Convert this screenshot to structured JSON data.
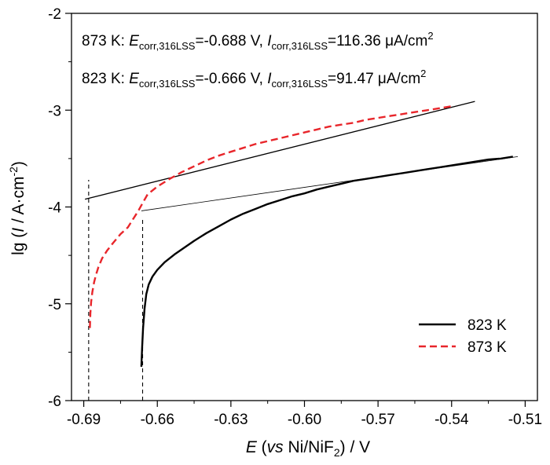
{
  "chart_data": {
    "type": "line",
    "xlim": [
      -0.695,
      -0.505
    ],
    "ylim": [
      -6,
      -2
    ],
    "x_ticks": [
      "-0.69",
      "-0.66",
      "-0.63",
      "-0.60",
      "-0.57",
      "-0.54",
      "-0.51"
    ],
    "y_ticks": [
      "-2",
      "-3",
      "-4",
      "-5",
      "-6"
    ],
    "xlabel": {
      "E": "E",
      "open": " (",
      "vs": "vs",
      "ref": " Ni/NiF",
      "sub": "2",
      "close": ") / V"
    },
    "ylabel": {
      "pre": "lg (",
      "I": "I",
      "mid": " / A·cm",
      "sup": "-2",
      "post": ")"
    },
    "annotations": [
      {
        "temp": "873 K: ",
        "e_sym": "E",
        "e_sub": "corr,316LSS",
        "e_val": "=-0.688 V, ",
        "i_sym": "I",
        "i_sub": "corr,316LSS",
        "i_val": "=116.36 μA/cm",
        "i_sup": "2"
      },
      {
        "temp": "823 K: ",
        "e_sym": "E",
        "e_sub": "corr,316LSS",
        "e_val": "=-0.666 V, ",
        "i_sym": "I",
        "i_sub": "corr,316LSS",
        "i_val": "=91.47 μA/cm",
        "i_sup": "2"
      }
    ],
    "legend": {
      "placement": "bottom-right",
      "entries": [
        {
          "label": "823 K",
          "color": "#000000",
          "dash": "solid"
        },
        {
          "label": "873 K",
          "color": "#e8262b",
          "dash": "dashed"
        }
      ]
    },
    "series": [
      {
        "name": "823 K",
        "color": "#000000",
        "style": "solid",
        "x": [
          -0.6665,
          -0.6662,
          -0.6658,
          -0.6652,
          -0.6645,
          -0.6635,
          -0.662,
          -0.66,
          -0.657,
          -0.653,
          -0.649,
          -0.645,
          -0.64,
          -0.635,
          -0.63,
          -0.625,
          -0.62,
          -0.615,
          -0.61,
          -0.605,
          -0.6,
          -0.595,
          -0.59,
          -0.585,
          -0.58,
          -0.575,
          -0.57,
          -0.565,
          -0.56,
          -0.555,
          -0.55,
          -0.545,
          -0.54,
          -0.535,
          -0.53,
          -0.525,
          -0.52,
          -0.515
        ],
        "y": [
          -5.65,
          -5.45,
          -5.25,
          -5.05,
          -4.9,
          -4.8,
          -4.72,
          -4.65,
          -4.57,
          -4.49,
          -4.42,
          -4.35,
          -4.27,
          -4.2,
          -4.13,
          -4.07,
          -4.02,
          -3.97,
          -3.93,
          -3.89,
          -3.86,
          -3.82,
          -3.79,
          -3.76,
          -3.73,
          -3.71,
          -3.69,
          -3.67,
          -3.65,
          -3.63,
          -3.61,
          -3.59,
          -3.57,
          -3.55,
          -3.53,
          -3.51,
          -3.5,
          -3.48
        ]
      },
      {
        "name": "873 K",
        "color": "#e8262b",
        "style": "dashed",
        "x": [
          -0.6875,
          -0.6873,
          -0.687,
          -0.6865,
          -0.6858,
          -0.685,
          -0.684,
          -0.6825,
          -0.6805,
          -0.678,
          -0.675,
          -0.672,
          -0.67,
          -0.668,
          -0.666,
          -0.664,
          -0.66,
          -0.655,
          -0.65,
          -0.645,
          -0.64,
          -0.635,
          -0.63,
          -0.625,
          -0.62,
          -0.615,
          -0.61,
          -0.605,
          -0.6,
          -0.595,
          -0.59,
          -0.585,
          -0.58,
          -0.575,
          -0.57,
          -0.565,
          -0.56,
          -0.555,
          -0.55,
          -0.545,
          -0.54
        ],
        "y": [
          -5.25,
          -5.1,
          -4.98,
          -4.88,
          -4.78,
          -4.7,
          -4.62,
          -4.53,
          -4.45,
          -4.37,
          -4.28,
          -4.21,
          -4.13,
          -4.05,
          -3.96,
          -3.87,
          -3.79,
          -3.71,
          -3.64,
          -3.58,
          -3.52,
          -3.47,
          -3.43,
          -3.39,
          -3.35,
          -3.32,
          -3.29,
          -3.26,
          -3.23,
          -3.2,
          -3.17,
          -3.15,
          -3.13,
          -3.1,
          -3.08,
          -3.06,
          -3.04,
          -3.02,
          -3.0,
          -2.98,
          -2.96
        ]
      }
    ],
    "tafel_lines": [
      {
        "name": "873 K tangent",
        "x": [
          -0.6895,
          -0.5305
        ],
        "y": [
          -3.92,
          -2.91
        ],
        "width": 1.3
      },
      {
        "name": "823 K tangent",
        "x": [
          -0.6665,
          -0.513
        ],
        "y": [
          -4.04,
          -3.48
        ],
        "width": 0.8
      }
    ],
    "markers": [
      {
        "name": "873 K corrosion potential",
        "x": -0.688,
        "y": [
          -6,
          -3.72
        ]
      },
      {
        "name": "823 K corrosion potential",
        "x": -0.666,
        "y": [
          -6,
          -4.13
        ]
      }
    ]
  }
}
